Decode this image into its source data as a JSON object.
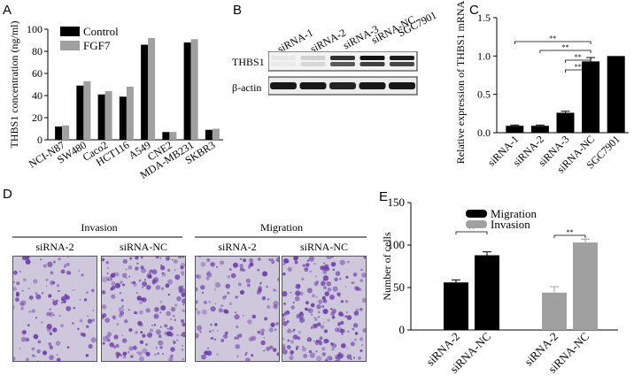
{
  "panels": {
    "A": "A",
    "B": "B",
    "C": "C",
    "D": "D",
    "E": "E"
  },
  "colors": {
    "black": "#000000",
    "gray": "#a0a0a0",
    "stain": "#6b3fa8"
  },
  "chart_data": [
    {
      "id": "A",
      "type": "bar",
      "ylabel": "THBS1 concentration (ng/ml)",
      "ylim": [
        0,
        100
      ],
      "yticks": [
        0,
        20,
        40,
        60,
        80,
        100
      ],
      "categories": [
        "NCI-N87",
        "SW480",
        "Caco2",
        "HCT116",
        "A549",
        "CNE2",
        "MDA-MB231",
        "SKBR3"
      ],
      "series": [
        {
          "name": "Control",
          "values": [
            12,
            49,
            41,
            39,
            86,
            7,
            88,
            9
          ]
        },
        {
          "name": "FGF7",
          "values": [
            13,
            53,
            44,
            48,
            92,
            7,
            91,
            10
          ]
        }
      ],
      "legend_position": "top-left"
    },
    {
      "id": "C",
      "type": "bar",
      "ylabel": "Relative expression of THBS1 mRNA",
      "ylim": [
        0,
        1.5
      ],
      "yticks": [
        "0.0",
        "0.5",
        "1.0",
        "1.5"
      ],
      "categories": [
        "siRNA-1",
        "siRNA-2",
        "siRNA-3",
        "siRNA-NC",
        "SGC7901"
      ],
      "values": [
        0.09,
        0.09,
        0.26,
        0.93,
        1.0
      ],
      "errors": [
        0.01,
        0.01,
        0.02,
        0.05,
        0
      ],
      "significance": [
        {
          "from": 0,
          "to": 3,
          "label": "**"
        },
        {
          "from": 1,
          "to": 3,
          "label": "**"
        },
        {
          "from": 2,
          "to": 3,
          "label": "**"
        },
        {
          "from": 2,
          "to": 3,
          "label": "**"
        }
      ]
    },
    {
      "id": "E",
      "type": "bar",
      "ylabel": "Number of cells",
      "ylim": [
        0,
        150
      ],
      "yticks": [
        0,
        50,
        100,
        150
      ],
      "categories": [
        "siRNA-2",
        "siRNA-NC",
        "siRNA-2",
        "siRNA-NC"
      ],
      "values": [
        56,
        88,
        44,
        103
      ],
      "errors": [
        3,
        4,
        7,
        4
      ],
      "bar_series": [
        0,
        0,
        1,
        1
      ],
      "series": [
        {
          "name": "Migration"
        },
        {
          "name": "Invasion"
        }
      ],
      "significance": [
        {
          "from": 0,
          "to": 1,
          "label": "**"
        },
        {
          "from": 2,
          "to": 3,
          "label": "**"
        }
      ],
      "legend_position": "top-left"
    }
  ],
  "blot": {
    "lanes": [
      "siRNA-1",
      "siRNA-2",
      "siRNA-3",
      "siRNA-NC",
      "SGC7901"
    ],
    "rows": [
      "THBS1",
      "β-actin"
    ],
    "thbs1_intensity": [
      0.05,
      0.15,
      0.85,
      1.0,
      0.95
    ],
    "actin_intensity": [
      0.95,
      0.95,
      0.9,
      0.95,
      0.95
    ]
  },
  "micro": {
    "groups": [
      {
        "title": "Invasion",
        "images": [
          "siRNA-2",
          "siRNA-NC"
        ],
        "density": [
          0.45,
          0.75
        ]
      },
      {
        "title": "Migration",
        "images": [
          "siRNA-2",
          "siRNA-NC"
        ],
        "density": [
          0.5,
          0.8
        ]
      }
    ]
  }
}
